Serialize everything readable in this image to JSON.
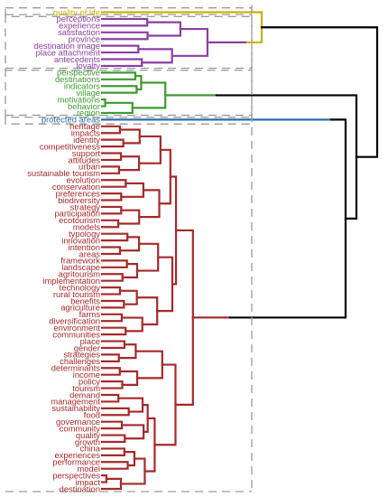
{
  "chart_data": {
    "type": "dendrogram",
    "orientation": "horizontal",
    "leaf_labels_side": "left",
    "cut_line": "dashed grey vertical",
    "root_color": "#000000",
    "clusters": [
      {
        "color": "#c8b400",
        "leaves": [
          "quality of life"
        ]
      },
      {
        "color": "#8b3fa0",
        "leaves": [
          "perceptions",
          "experience",
          "satisfaction",
          "province",
          "destination image",
          "place attachment",
          "antecedents",
          "loyalty"
        ]
      },
      {
        "color": "#3f9a30",
        "leaves": [
          "perspective",
          "destinations",
          "indicators",
          "village",
          "motivations",
          "behavior",
          "region"
        ]
      },
      {
        "color": "#2c6db0",
        "leaves": [
          "protected areas"
        ]
      },
      {
        "color": "#a52a2a",
        "leaves": [
          "heritage",
          "impacts",
          "identity",
          "competitiveness",
          "support",
          "attitudes",
          "urban",
          "sustainable tourism",
          "evolution",
          "conservation",
          "preferences",
          "biodiversity",
          "strategy",
          "participation",
          "ecotourism",
          "models",
          "typology",
          "innovation",
          "intention",
          "areas",
          "framework",
          "landscape",
          "agritourism",
          "implementation",
          "technology",
          "rural tourism",
          "benefits",
          "agriculture",
          "farms",
          "diversification",
          "environment",
          "communities",
          "place",
          "gender",
          "strategies",
          "challenges",
          "determinants",
          "income",
          "policy",
          "tourism",
          "demand",
          "management",
          "sustainability",
          "food",
          "governance",
          "community",
          "quality",
          "growth",
          "china",
          "experiences",
          "performance",
          "model",
          "perspectives",
          "impact",
          "destination"
        ]
      }
    ]
  }
}
